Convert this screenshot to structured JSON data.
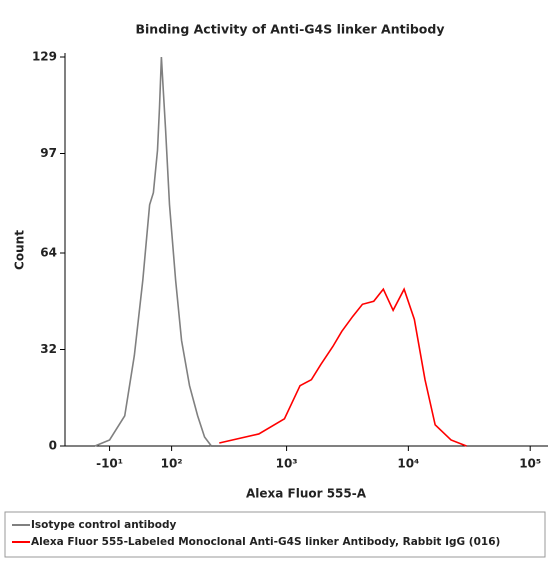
{
  "chart_data": {
    "type": "line",
    "title": "Binding Activity of Anti-G4S linker Antibody",
    "x_label": "Alexa Fluor 555-A",
    "y_label": "Count",
    "xlim": [
      -90,
      140000
    ],
    "ylim": [
      0,
      129
    ],
    "xticks": [
      {
        "value": -10,
        "label": "-10¹"
      },
      {
        "value": 100,
        "label": "10²"
      },
      {
        "value": 1000,
        "label": "10³"
      },
      {
        "value": 10000,
        "label": "10⁴"
      },
      {
        "value": 100000,
        "label": "10⁵"
      }
    ],
    "yticks": [
      0,
      32,
      64,
      97,
      129
    ],
    "series": [
      {
        "name": "Isotype control antibody",
        "color": "#808080",
        "x": [
          -33,
          -10,
          13,
          28,
          42,
          54,
          61,
          69,
          73,
          77,
          81,
          86,
          95,
          110,
          126,
          150,
          178,
          205,
          235
        ],
        "values": [
          0,
          2,
          10,
          30,
          55,
          80,
          84,
          98,
          112,
          129,
          118,
          105,
          80,
          55,
          35,
          20,
          10,
          3,
          0
        ]
      },
      {
        "name": "Alexa Fluor 555-Labeled Monoclonal Anti-G4S linker Antibody, Rabbit IgG (016)",
        "color": "#ff0000",
        "x": [
          275,
          590,
          960,
          1290,
          1600,
          1910,
          2400,
          2840,
          3500,
          4200,
          5200,
          6230,
          7500,
          9230,
          11200,
          13700,
          16600,
          22400,
          30000
        ],
        "values": [
          1,
          4,
          9,
          20,
          22,
          27,
          33,
          38,
          43,
          47,
          48,
          52,
          45,
          52,
          42,
          22,
          7,
          2,
          0
        ]
      }
    ]
  }
}
